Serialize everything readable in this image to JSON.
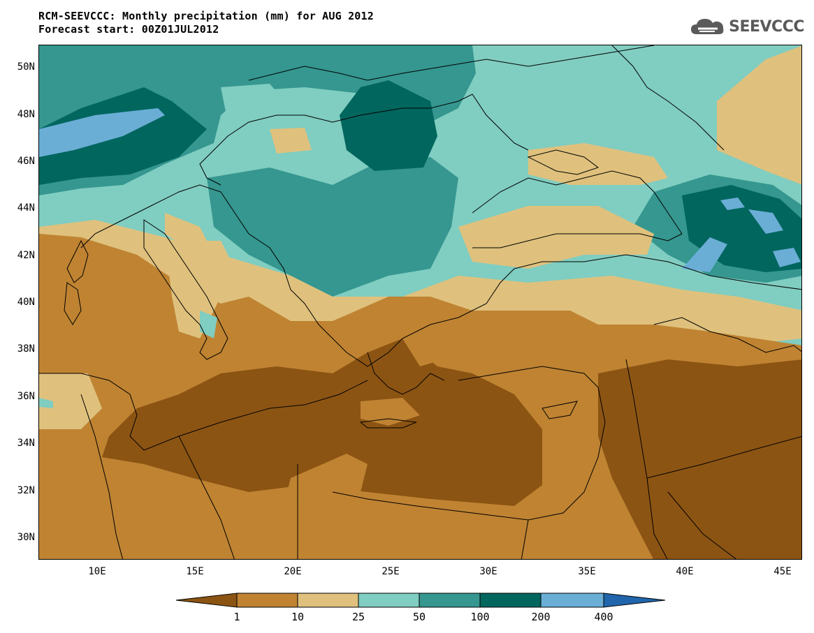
{
  "title": {
    "line1": "RCM-SEEVCCC: Monthly precipitation (mm) for AUG 2012",
    "line2": "Forecast start: 00Z01JUL2012"
  },
  "logo": {
    "text": "SEEVCCC",
    "icon": "cloud-icon",
    "color": "#5a5a5a"
  },
  "axes": {
    "lat_labels": [
      "50N",
      "48N",
      "46N",
      "44N",
      "42N",
      "40N",
      "38N",
      "36N",
      "34N",
      "32N",
      "30N"
    ],
    "lon_labels": [
      "10E",
      "15E",
      "20E",
      "25E",
      "30E",
      "35E",
      "40E",
      "45E"
    ],
    "lon_range": [
      7,
      46
    ],
    "lat_range": [
      29,
      51
    ]
  },
  "legend": {
    "levels": [
      "1",
      "10",
      "25",
      "50",
      "100",
      "200",
      "400"
    ],
    "colors": [
      "#8c5413",
      "#bf8332",
      "#dfc17d",
      "#80cdc1",
      "#35978f",
      "#01665e",
      "#6aaed6",
      "#2166ac"
    ]
  }
}
